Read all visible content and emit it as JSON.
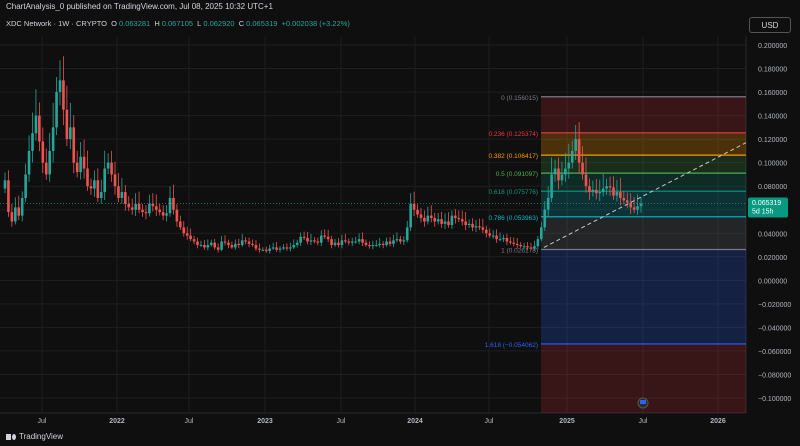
{
  "header": {
    "publish_line": "ChartAnalysis_0 published on TradingView.com, Jul 08, 2025 10:32 UTC+1"
  },
  "symbol": {
    "name": "XDC Network · 1W · CRYPTO",
    "open_label": "O",
    "open": "0.063281",
    "high_label": "H",
    "high": "0.067105",
    "low_label": "L",
    "low": "0.062920",
    "close_label": "C",
    "close": "0.065319",
    "change": "+0.002038 (+3.22%)"
  },
  "currency_button": "USD",
  "price_axis": {
    "ticks": [
      "0.200000",
      "0.180000",
      "0.160000",
      "0.140000",
      "0.120000",
      "0.100000",
      "0.080000",
      "0.060000",
      "0.040000",
      "0.020000",
      "0.000000",
      "−0.020000",
      "−0.040000",
      "−0.060000",
      "−0.080000",
      "−0.100000"
    ],
    "values": [
      0.2,
      0.18,
      0.16,
      0.14,
      0.12,
      0.1,
      0.08,
      0.06,
      0.04,
      0.02,
      0,
      -0.02,
      -0.04,
      -0.06,
      -0.08,
      -0.1
    ]
  },
  "current_price": {
    "value": "0.065319",
    "countdown": "5d 15h"
  },
  "time_axis": [
    "Jul",
    "2022",
    "Jul",
    "2023",
    "Jul",
    "2024",
    "Jul",
    "2025",
    "Jul",
    "2026"
  ],
  "fib_levels": [
    {
      "label": "0 (0.156015)",
      "value": 0.156015,
      "color": "#787b86"
    },
    {
      "label": "0.236 (0.125374)",
      "value": 0.125374,
      "color": "#f23645"
    },
    {
      "label": "0.382 (0.106417)",
      "value": 0.106417,
      "color": "#ff9800"
    },
    {
      "label": "0.5 (0.091097)",
      "value": 0.091097,
      "color": "#4caf50"
    },
    {
      "label": "0.618 (0.075776)",
      "value": 0.075776,
      "color": "#089981"
    },
    {
      "label": "0.786 (0.053963)",
      "value": 0.053963,
      "color": "#00bcd4"
    },
    {
      "label": "1 (0.026178)",
      "value": 0.026178,
      "color": "#787b86"
    },
    {
      "label": "1.618 (−0.054062)",
      "value": -0.054062,
      "color": "#2962ff"
    }
  ],
  "colors": {
    "up": "#26a69a",
    "down": "#ef5350",
    "bg": "#0f0f0f",
    "grid": "#1e1e1e"
  },
  "footer": {
    "brand": "TradingView"
  }
}
